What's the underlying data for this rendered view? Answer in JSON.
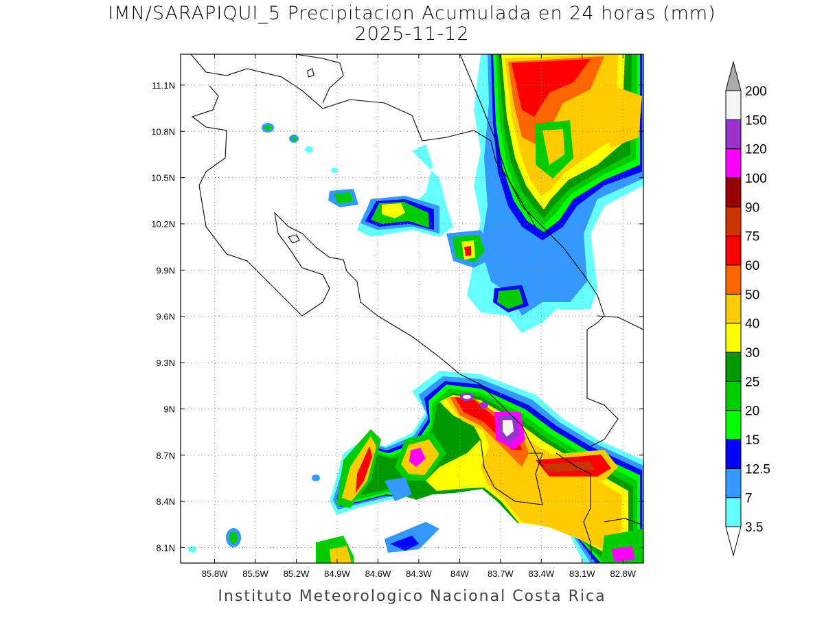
{
  "title": {
    "line1": "IMN/SARAPIQUI_5 Precipitacion Acumulada en 24 horas (mm)",
    "line2": "2025-11-12"
  },
  "footer": "Instituto Meteorologico Nacional Costa Rica",
  "map": {
    "lon_range": [
      -86.05,
      -82.65
    ],
    "lat_range": [
      8.0,
      11.3
    ],
    "lon_ticks": [
      "85.8W",
      "85.5W",
      "85.2W",
      "84.9W",
      "84.6W",
      "84.3W",
      "84W",
      "83.7W",
      "83.4W",
      "83.1W",
      "82.8W"
    ],
    "lon_tick_values": [
      -85.8,
      -85.5,
      -85.2,
      -84.9,
      -84.6,
      -84.3,
      -84.0,
      -83.7,
      -83.4,
      -83.1,
      -82.8
    ],
    "lat_ticks": [
      "8.1N",
      "8.4N",
      "8.7N",
      "9N",
      "9.3N",
      "9.6N",
      "9.9N",
      "10.2N",
      "10.5N",
      "10.8N",
      "11.1N"
    ],
    "lat_tick_values": [
      8.1,
      8.4,
      8.7,
      9.0,
      9.3,
      9.6,
      9.9,
      10.2,
      10.5,
      10.8,
      11.1
    ],
    "grid": "dotted"
  },
  "legend": {
    "levels": [
      "3.5",
      "7",
      "12.5",
      "15",
      "20",
      "25",
      "30",
      "40",
      "50",
      "60",
      "75",
      "90",
      "100",
      "120",
      "150",
      "200"
    ],
    "colors": [
      "#66ffff",
      "#3399ff",
      "#0000ff",
      "#00ff00",
      "#00cc00",
      "#009900",
      "#ffff00",
      "#ffcc00",
      "#ff6600",
      "#ff0000",
      "#cc3300",
      "#990000",
      "#ff00ff",
      "#9933cc",
      "#f5f5f5",
      "#aaaaaa"
    ],
    "placement": "right"
  }
}
